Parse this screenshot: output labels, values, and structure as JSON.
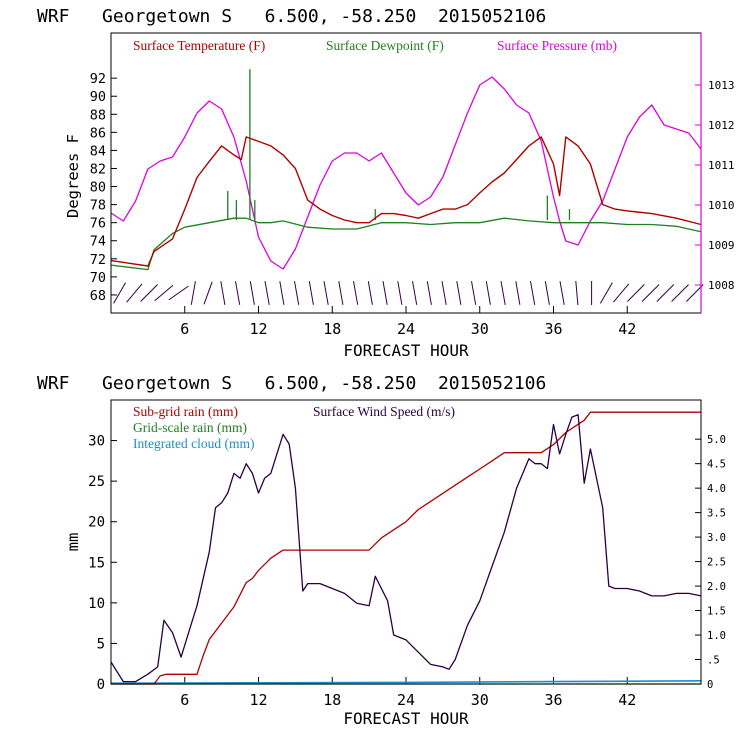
{
  "colors": {
    "temperature": "#b00000",
    "dewpoint": "#208020",
    "pressure": "#e000e0",
    "wind_barb": "#300040",
    "subgrid_rain": "#b00000",
    "grid_rain": "#208020",
    "cloud": "#1a8fd0",
    "wind_speed": "#2a0040",
    "axis": "#000000"
  },
  "chart_data": [
    {
      "type": "line",
      "title": "WRF   Georgetown S   6.500, -58.250  2015052106",
      "xlabel": "FORECAST HOUR",
      "ylabel": "Degrees F",
      "xlim": [
        0,
        48
      ],
      "ylim": [
        66,
        97
      ],
      "y2lim": [
        1007.3,
        1014.3
      ],
      "xticks": [
        6,
        12,
        18,
        24,
        30,
        36,
        42
      ],
      "yticks": [
        68,
        70,
        72,
        74,
        76,
        78,
        80,
        82,
        84,
        86,
        88,
        90,
        92
      ],
      "y2ticks": [
        1008,
        1009,
        1010,
        1011,
        1012,
        1013
      ],
      "legend": [
        "Surface Temperature (F)",
        "Surface Dewpoint (F)",
        "Surface Pressure (mb)"
      ],
      "series": [
        {
          "name": "Surface Temperature (F)",
          "x": [
            0,
            3,
            3.5,
            5,
            6,
            7,
            8,
            9,
            10,
            10.6,
            11,
            12,
            13,
            14,
            15,
            16,
            17,
            18,
            19,
            20,
            21,
            22,
            23,
            24,
            25,
            26,
            27,
            28,
            29,
            30,
            31,
            32,
            33,
            34,
            35,
            36,
            36.5,
            37,
            38,
            39,
            40,
            41,
            42,
            44,
            46,
            48
          ],
          "values": [
            71.8,
            71.2,
            72.8,
            74.2,
            77.5,
            81,
            82.8,
            84.5,
            83.5,
            83,
            85.5,
            85,
            84.5,
            83.5,
            82,
            78.5,
            77.5,
            76.8,
            76.3,
            76,
            76,
            77,
            77,
            76.8,
            76.5,
            77,
            77.5,
            77.5,
            78,
            79.3,
            80.5,
            81.5,
            83,
            84.5,
            85.5,
            82.5,
            79,
            85.5,
            84.5,
            82.5,
            78,
            77.5,
            77.3,
            77,
            76.5,
            75.8
          ]
        },
        {
          "name": "Surface Dewpoint (F)",
          "x": [
            0,
            3,
            3.5,
            5,
            6,
            8,
            10,
            11,
            12,
            13,
            14,
            16,
            18,
            20,
            22,
            24,
            26,
            28,
            30,
            32,
            34,
            36,
            38,
            40,
            42,
            44,
            46,
            48
          ],
          "values": [
            71.3,
            70.8,
            73,
            74.8,
            75.5,
            76,
            76.5,
            76.5,
            76,
            76,
            76.2,
            75.5,
            75.3,
            75.3,
            76,
            76,
            75.8,
            76,
            76,
            76.5,
            76.2,
            76,
            76,
            76,
            75.8,
            75.8,
            75.6,
            75
          ],
          "spikes": [
            [
              9.5,
              79.5
            ],
            [
              10.2,
              78.5
            ],
            [
              11.3,
              93
            ],
            [
              11.7,
              78.5
            ],
            [
              21.5,
              77.5
            ],
            [
              35.5,
              79
            ],
            [
              37.3,
              77.5
            ]
          ]
        },
        {
          "name": "Surface Pressure (mb)",
          "axis": "right",
          "x": [
            0,
            1,
            2,
            3,
            4,
            5,
            6,
            7,
            8,
            9,
            10,
            11,
            12,
            13,
            14,
            15,
            16,
            17,
            18,
            19,
            20,
            21,
            22,
            23,
            24,
            25,
            26,
            27,
            28,
            29,
            30,
            31,
            32,
            33,
            34,
            35,
            36,
            36.5,
            37,
            38,
            39,
            40,
            41,
            42,
            43,
            44,
            45,
            46,
            47,
            48
          ],
          "values": [
            1009.8,
            1009.6,
            1010.1,
            1010.9,
            1011.1,
            1011.2,
            1011.7,
            1012.3,
            1012.6,
            1012.4,
            1011.7,
            1010.6,
            1009.2,
            1008.6,
            1008.4,
            1008.9,
            1009.7,
            1010.5,
            1011.1,
            1011.3,
            1011.3,
            1011.1,
            1011.3,
            1010.8,
            1010.3,
            1010,
            1010.2,
            1010.7,
            1011.5,
            1012.3,
            1013.0,
            1013.2,
            1012.9,
            1012.5,
            1012.3,
            1011.6,
            1010.2,
            1009.6,
            1009.1,
            1009.0,
            1009.6,
            1010.1,
            1010.9,
            1011.7,
            1012.2,
            1012.5,
            1012.0,
            1011.9,
            1011.8,
            1011.4
          ]
        }
      ],
      "wind_barbs": {
        "x": [
          0.7,
          1.9,
          3.1,
          4.3,
          5.5,
          6.7,
          7.9,
          9.1,
          10.3,
          11.5,
          12.7,
          13.9,
          15.1,
          16.3,
          17.5,
          18.7,
          19.9,
          21.1,
          22.3,
          23.5,
          24.7,
          25.9,
          27.1,
          28.3,
          29.5,
          30.7,
          31.9,
          33.1,
          34.3,
          35.5,
          36.7,
          37.9,
          39.1,
          40.3,
          41.5,
          42.7,
          43.9,
          45.1,
          46.3,
          47.5
        ],
        "direction_deg": [
          60,
          50,
          45,
          40,
          35,
          80,
          70,
          100,
          100,
          100,
          100,
          100,
          100,
          100,
          100,
          100,
          100,
          100,
          100,
          100,
          100,
          100,
          100,
          100,
          100,
          100,
          100,
          100,
          100,
          100,
          100,
          95,
          90,
          60,
          50,
          45,
          45,
          45,
          45,
          45
        ]
      }
    },
    {
      "type": "line",
      "title": "WRF   Georgetown S   6.500, -58.250  2015052106",
      "xlabel": "FORECAST HOUR",
      "ylabel": "mm",
      "xlim": [
        0,
        48
      ],
      "ylim": [
        0,
        35
      ],
      "y2lim": [
        0,
        5.8
      ],
      "xticks": [
        6,
        12,
        18,
        24,
        30,
        36,
        42
      ],
      "yticks": [
        0,
        5,
        10,
        15,
        20,
        25,
        30
      ],
      "y2ticks": [
        "0",
        ".5",
        "1.0",
        "1.5",
        "2.0",
        "2.5",
        "3.0",
        "3.5",
        "4.0",
        "4.5",
        "5.0"
      ],
      "legend": [
        "Sub-grid rain (mm)",
        "Grid-scale rain (mm)",
        "Integrated cloud (mm)",
        "Surface Wind Speed (m/s)"
      ],
      "series": [
        {
          "name": "Sub-grid rain (mm)",
          "x": [
            0,
            3.5,
            4,
            4.5,
            7,
            7.5,
            8,
            9,
            10,
            11,
            11.5,
            12,
            13,
            14,
            15,
            16,
            17,
            18,
            19,
            20,
            21,
            22,
            23,
            24,
            25,
            26,
            27,
            28,
            29,
            30,
            31,
            32,
            33,
            34,
            35,
            36,
            37,
            38,
            38.5,
            39,
            40,
            42,
            44,
            46,
            48
          ],
          "values": [
            0,
            0,
            1,
            1.2,
            1.2,
            3.5,
            5.5,
            7.5,
            9.5,
            12.5,
            13,
            14,
            15.5,
            16.5,
            16.5,
            16.5,
            16.5,
            16.5,
            16.5,
            16.5,
            16.5,
            18,
            19,
            20,
            21.5,
            22.5,
            23.5,
            24.5,
            25.5,
            26.5,
            27.5,
            28.5,
            28.5,
            28.5,
            28.5,
            29.5,
            31,
            32,
            32.5,
            33.5,
            33.5,
            33.5,
            33.5,
            33.5,
            33.5
          ]
        },
        {
          "name": "Grid-scale rain (mm)",
          "x": [
            0,
            48
          ],
          "values": [
            0,
            0
          ]
        },
        {
          "name": "Integrated cloud (mm)",
          "x": [
            0,
            12,
            24,
            36,
            48
          ],
          "values": [
            0.1,
            0.15,
            0.2,
            0.3,
            0.4
          ]
        },
        {
          "name": "Surface Wind Speed (m/s)",
          "axis": "right",
          "x": [
            0,
            1,
            2,
            3,
            3.8,
            4.3,
            5,
            5.7,
            6.5,
            7,
            8,
            8.5,
            9,
            9.5,
            10,
            10.5,
            11,
            11.5,
            12,
            12.5,
            13,
            13.5,
            14,
            14.5,
            15,
            15.6,
            16,
            17,
            18,
            19,
            20,
            21,
            21.5,
            22,
            22.5,
            23,
            24,
            25,
            26,
            27,
            27.5,
            28,
            29,
            30,
            31,
            32,
            33,
            34,
            34.5,
            35,
            35.5,
            36,
            36.5,
            37,
            37.5,
            38,
            38.5,
            39,
            40,
            40.5,
            41,
            42,
            43,
            44,
            45,
            46,
            47,
            48
          ],
          "values": [
            0.45,
            0.05,
            0.05,
            0.2,
            0.35,
            1.3,
            1.05,
            0.55,
            1.2,
            1.6,
            2.7,
            3.6,
            3.7,
            3.9,
            4.3,
            4.2,
            4.5,
            4.3,
            3.9,
            4.2,
            4.3,
            4.7,
            5.1,
            4.9,
            4.0,
            1.9,
            2.05,
            2.05,
            1.95,
            1.85,
            1.65,
            1.6,
            2.2,
            1.95,
            1.7,
            1.0,
            0.9,
            0.65,
            0.4,
            0.35,
            0.3,
            0.5,
            1.2,
            1.7,
            2.4,
            3.1,
            4.0,
            4.6,
            4.5,
            4.5,
            4.4,
            5.3,
            4.7,
            5.1,
            5.45,
            5.5,
            4.1,
            4.8,
            3.6,
            2.0,
            1.95,
            1.95,
            1.9,
            1.8,
            1.8,
            1.85,
            1.85,
            1.8
          ]
        }
      ]
    }
  ]
}
